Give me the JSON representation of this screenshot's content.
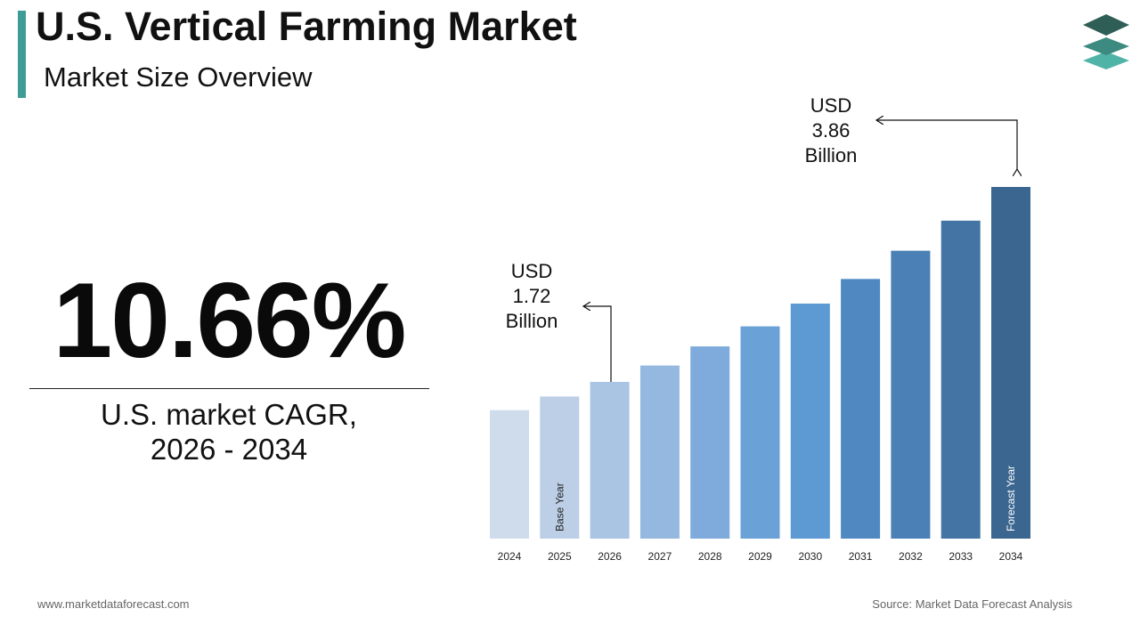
{
  "header": {
    "title": "U.S. Vertical Farming Market",
    "subtitle": "Market Size Overview"
  },
  "logo": {
    "icon": "stacked-layers-icon",
    "colors": [
      "#2f5e57",
      "#3d8a80",
      "#4fb3a7"
    ]
  },
  "kpi": {
    "value": "10.66%",
    "label_line1": "U.S. market CAGR,",
    "label_line2": "2026 - 2034"
  },
  "callouts": {
    "forecast": {
      "line1": "USD",
      "line2": "3.86",
      "line3": "Billion"
    },
    "base": {
      "line1": "USD",
      "line2": "1.72",
      "line3": "Billion"
    }
  },
  "chart_data": {
    "type": "bar",
    "title": "",
    "xlabel": "",
    "ylabel": "",
    "categories": [
      "2024",
      "2025",
      "2026",
      "2027",
      "2028",
      "2029",
      "2030",
      "2031",
      "2032",
      "2033",
      "2034"
    ],
    "values": [
      1.41,
      1.56,
      1.72,
      1.9,
      2.11,
      2.33,
      2.58,
      2.85,
      3.16,
      3.49,
      3.86
    ],
    "ylim": [
      0,
      3.86
    ],
    "grid": false,
    "colors": [
      "#cfdcec",
      "#bccfe6",
      "#aac4e3",
      "#94b8e0",
      "#7eabdc",
      "#6aa2d8",
      "#5d9ad3",
      "#5089c2",
      "#4a80b5",
      "#4474a4",
      "#3a6690"
    ],
    "bar_annotations": [
      {
        "category": "2025",
        "text": "Base Year"
      },
      {
        "category": "2034",
        "text": "Forecast Year"
      }
    ]
  },
  "footer": {
    "website": "www.marketdataforecast.com",
    "source": "Source: Market Data Forecast Analysis"
  }
}
